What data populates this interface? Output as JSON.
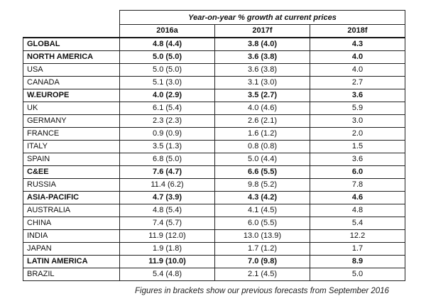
{
  "table": {
    "caption": "Year-on-year % growth at current prices",
    "columns": [
      "2016a",
      "2017f",
      "2018f"
    ],
    "rows": [
      {
        "label": "GLOBAL",
        "bold": true,
        "values": [
          "4.8 (4.4)",
          "3.8 (4.0)",
          "4.3"
        ]
      },
      {
        "label": "NORTH AMERICA",
        "bold": true,
        "values": [
          "5.0 (5.0)",
          "3.6 (3.8)",
          "4.0"
        ]
      },
      {
        "label": "USA",
        "bold": false,
        "values": [
          "5.0 (5.0)",
          "3.6 (3.8)",
          "4.0"
        ]
      },
      {
        "label": "CANADA",
        "bold": false,
        "values": [
          "5.1 (3.0)",
          "3.1 (3.0)",
          "2.7"
        ]
      },
      {
        "label": "W.EUROPE",
        "bold": true,
        "values": [
          "4.0 (2.9)",
          "3.5 (2.7)",
          "3.6"
        ]
      },
      {
        "label": "UK",
        "bold": false,
        "values": [
          "6.1 (5.4)",
          "4.0 (4.6)",
          "5.9"
        ]
      },
      {
        "label": "GERMANY",
        "bold": false,
        "values": [
          "2.3 (2.3)",
          "2.6 (2.1)",
          "3.0"
        ]
      },
      {
        "label": "FRANCE",
        "bold": false,
        "values": [
          "0.9 (0.9)",
          "1.6 (1.2)",
          "2.0"
        ]
      },
      {
        "label": "ITALY",
        "bold": false,
        "values": [
          "3.5 (1.3)",
          "0.8 (0.8)",
          "1.5"
        ]
      },
      {
        "label": "SPAIN",
        "bold": false,
        "values": [
          "6.8 (5.0)",
          "5.0 (4.4)",
          "3.6"
        ]
      },
      {
        "label": "C&EE",
        "bold": true,
        "values": [
          "7.6 (4.7)",
          "6.6 (5.5)",
          "6.0"
        ]
      },
      {
        "label": "RUSSIA",
        "bold": false,
        "values": [
          "11.4 (6.2)",
          "9.8 (5.2)",
          "7.8"
        ]
      },
      {
        "label": "ASIA-PACIFIC",
        "bold": true,
        "values": [
          "4.7 (3.9)",
          "4.3 (4.2)",
          "4.6"
        ]
      },
      {
        "label": "AUSTRALIA",
        "bold": false,
        "values": [
          "4.8 (5.4)",
          "4.1 (4.5)",
          "4.8"
        ]
      },
      {
        "label": "CHINA",
        "bold": false,
        "values": [
          "7.4 (5.7)",
          "6.0 (5.5)",
          "5.4"
        ]
      },
      {
        "label": "INDIA",
        "bold": false,
        "values": [
          "11.9 (12.0)",
          "13.0 (13.9)",
          "12.2"
        ]
      },
      {
        "label": "JAPAN",
        "bold": false,
        "values": [
          "1.9 (1.8)",
          "1.7 (1.2)",
          "1.7"
        ]
      },
      {
        "label": "LATIN AMERICA",
        "bold": true,
        "values": [
          "11.9 (10.0)",
          "7.0 (9.8)",
          "8.9"
        ]
      },
      {
        "label": "BRAZIL",
        "bold": false,
        "values": [
          "5.4 (4.8)",
          "2.1 (4.5)",
          "5.0"
        ]
      }
    ]
  },
  "footnote": "Figures in brackets show our previous forecasts from September 2016"
}
